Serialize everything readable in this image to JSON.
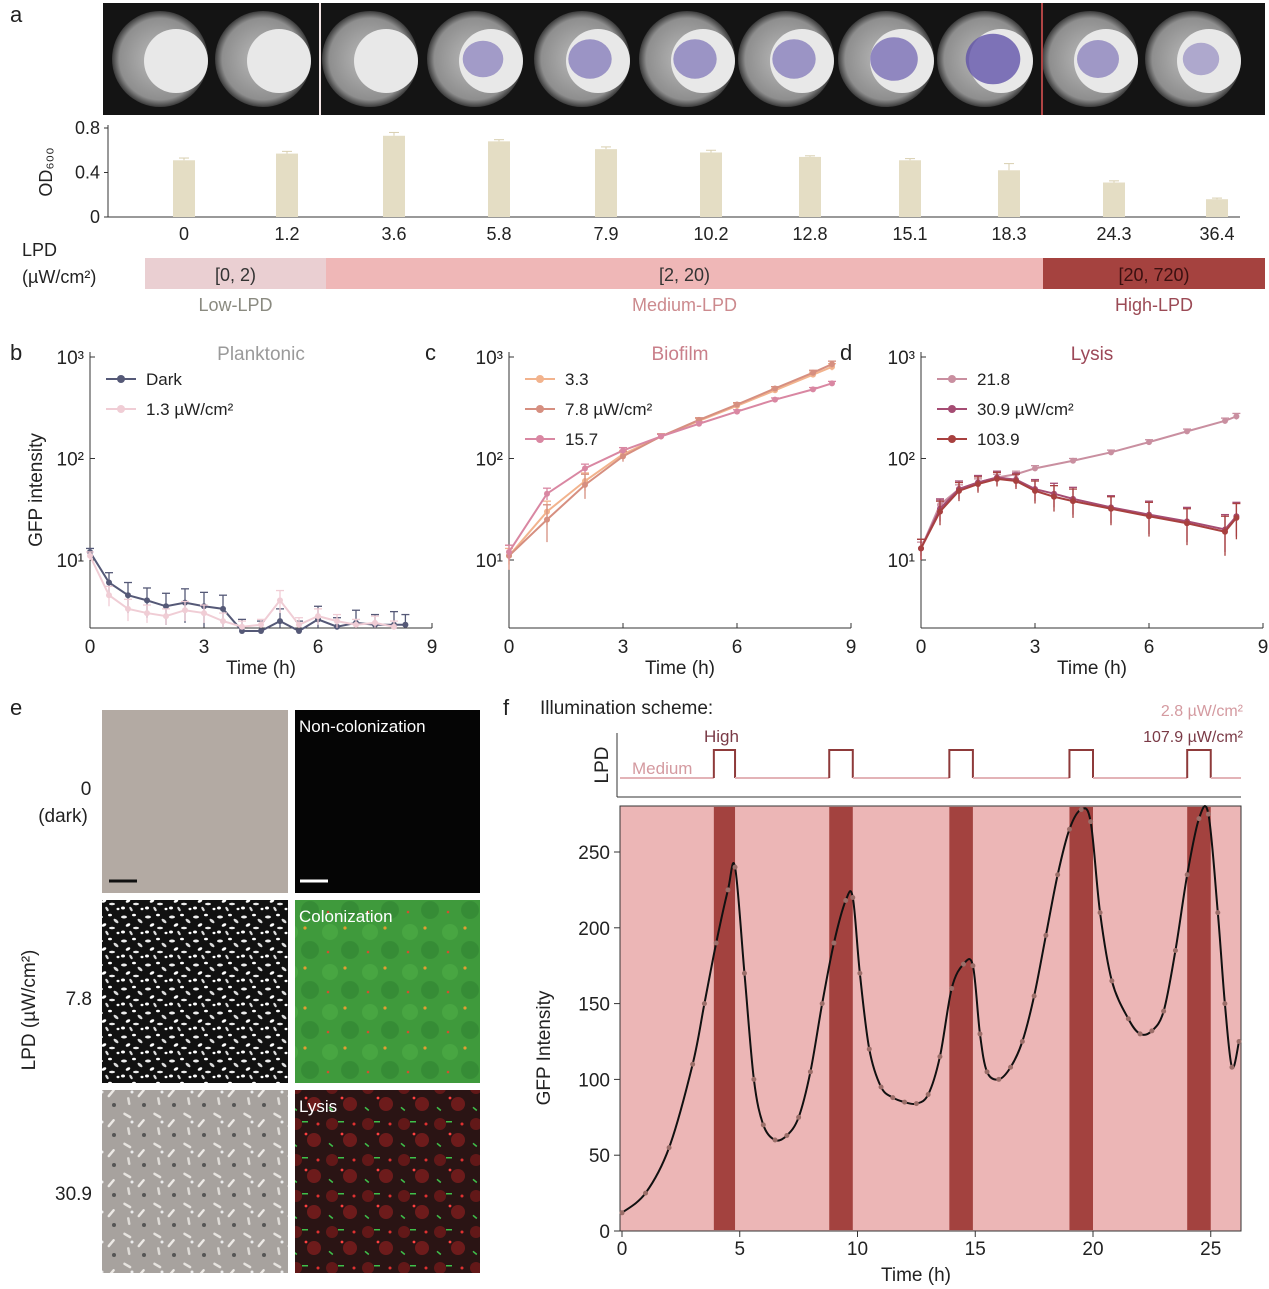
{
  "panel_labels": {
    "a": "a",
    "b": "b",
    "c": "c",
    "d": "d",
    "e": "e",
    "f": "f"
  },
  "panel_a": {
    "well_stain": [
      0,
      0,
      0,
      0.45,
      0.55,
      0.55,
      0.55,
      0.7,
      0.95,
      0.5,
      0.3
    ],
    "lpd_label": "LPD",
    "lpd_unit": "(µW/cm²)",
    "ranges": [
      {
        "range": "[0, 2)",
        "name": "Low-LPD",
        "color": "#eacfd2",
        "text": "#8a8a80"
      },
      {
        "range": "[2, 20)",
        "name": "Medium-LPD",
        "color": "#efb7b7",
        "text": "#cc8a8e"
      },
      {
        "range": "[20, 720)",
        "name": "High-LPD",
        "color": "#a5423f",
        "text": "#9b4a55"
      }
    ]
  },
  "chart_data": [
    {
      "type": "bar",
      "panel": "a",
      "categories": [
        "0",
        "1.2",
        "3.6",
        "5.8",
        "7.9",
        "10.2",
        "12.8",
        "15.1",
        "18.3",
        "24.3",
        "36.4"
      ],
      "values": [
        0.51,
        0.57,
        0.73,
        0.68,
        0.61,
        0.58,
        0.54,
        0.51,
        0.42,
        0.31,
        0.16
      ],
      "errors": [
        0.02,
        0.02,
        0.03,
        0.015,
        0.02,
        0.02,
        0.01,
        0.015,
        0.06,
        0.015,
        0.01
      ],
      "ylabel": "OD₆₀₀",
      "ylim": [
        0,
        0.8
      ],
      "yticks": [
        "0",
        "0.4",
        "0.8"
      ],
      "ytick_values": [
        0,
        0.4,
        0.8
      ],
      "color": "#e4ddc4"
    },
    {
      "type": "line",
      "panel": "b",
      "title": "Planktonic",
      "title_color": "#9a9a9a",
      "xlabel": "Time (h)",
      "ylabel": "GFP intensity",
      "yscale": "log",
      "ylim": [
        2.1,
        1000
      ],
      "xlim": [
        0,
        9
      ],
      "xticks": [
        "0",
        "3",
        "6",
        "9"
      ],
      "yticks": [
        "10³",
        "10²",
        "10¹"
      ],
      "series": [
        {
          "name": "Dark",
          "color": "#555977",
          "x": [
            0,
            0.5,
            1,
            1.5,
            2,
            2.5,
            3,
            3.5,
            4,
            4.5,
            5,
            5.5,
            6,
            6.5,
            7,
            7.5,
            8,
            8.3
          ],
          "y": [
            12,
            6,
            4.5,
            4,
            3.5,
            3.8,
            3.5,
            3.3,
            2,
            2,
            2.5,
            2,
            2.6,
            2.2,
            2.4,
            2.3,
            2.3,
            2.3
          ],
          "err": [
            1,
            1.5,
            1.5,
            1.3,
            1.2,
            1.4,
            1.3,
            1.2,
            0.6,
            0.5,
            0.8,
            0.5,
            0.9,
            0.5,
            0.8,
            0.6,
            0.8,
            0.6
          ]
        },
        {
          "name": "1.3 µW/cm²",
          "color": "#f0cdd5",
          "x": [
            0,
            0.5,
            1,
            1.5,
            2,
            2.5,
            3,
            3.5,
            4,
            4.5,
            5,
            5.5,
            6,
            6.5,
            7,
            7.5,
            8
          ],
          "y": [
            11,
            4.5,
            3.3,
            3,
            2.8,
            3.2,
            3,
            2.5,
            2.2,
            2.3,
            4,
            2.3,
            2.8,
            2.5,
            2.3,
            2.4,
            2.2
          ],
          "err": [
            1,
            1,
            0.8,
            0.6,
            0.5,
            0.7,
            0.6,
            0.5,
            0.3,
            0.3,
            1,
            0.4,
            0.5,
            0.4,
            0.3,
            0.4,
            0.3
          ]
        }
      ]
    },
    {
      "type": "line",
      "panel": "c",
      "title": "Biofilm",
      "title_color": "#c97f8a",
      "xlabel": "Time (h)",
      "yscale": "log",
      "ylim": [
        2.1,
        1000
      ],
      "xlim": [
        0,
        9
      ],
      "xticks": [
        "0",
        "3",
        "6",
        "9"
      ],
      "yticks": [
        "10³",
        "10²",
        "10¹"
      ],
      "series": [
        {
          "name": "3.3",
          "color": "#f2b38d",
          "x": [
            0,
            1,
            2,
            3,
            4,
            5,
            6,
            7,
            8,
            8.5
          ],
          "y": [
            11,
            30,
            60,
            110,
            165,
            235,
            330,
            470,
            670,
            800
          ],
          "err": [
            2,
            8,
            12,
            10,
            10,
            12,
            15,
            20,
            40,
            60
          ]
        },
        {
          "name": "7.8 µW/cm²",
          "color": "#d68f80",
          "x": [
            0,
            1,
            2,
            3,
            4,
            5,
            6,
            7,
            8,
            8.5
          ],
          "y": [
            11,
            25,
            55,
            105,
            165,
            240,
            340,
            490,
            700,
            850
          ],
          "err": [
            3,
            10,
            15,
            12,
            10,
            12,
            15,
            20,
            40,
            60
          ]
        },
        {
          "name": "15.7",
          "color": "#d987a2",
          "x": [
            0,
            1,
            2,
            3,
            4,
            5,
            6,
            7,
            8,
            8.5
          ],
          "y": [
            12,
            45,
            80,
            120,
            165,
            220,
            290,
            380,
            480,
            550
          ],
          "err": [
            2,
            6,
            8,
            8,
            8,
            10,
            12,
            15,
            20,
            25
          ]
        }
      ]
    },
    {
      "type": "line",
      "panel": "d",
      "title": "Lysis",
      "title_color": "#9c4858",
      "xlabel": "Time (h)",
      "yscale": "log",
      "ylim": [
        2.1,
        1000
      ],
      "xlim": [
        0,
        9
      ],
      "xticks": [
        "0",
        "3",
        "6",
        "9"
      ],
      "yticks": [
        "10³",
        "10²",
        "10¹"
      ],
      "series": [
        {
          "name": "21.8",
          "color": "#c98fa0",
          "x": [
            0,
            0.5,
            1,
            1.5,
            2,
            2.5,
            3,
            4,
            5,
            6,
            7,
            8,
            8.3
          ],
          "y": [
            13,
            35,
            50,
            58,
            65,
            70,
            80,
            95,
            115,
            145,
            185,
            235,
            260
          ],
          "err": [
            2,
            4,
            5,
            5,
            5,
            5,
            5,
            5,
            6,
            8,
            10,
            15,
            18
          ]
        },
        {
          "name": "30.9 µW/cm²",
          "color": "#a54c73",
          "x": [
            0,
            0.5,
            1,
            1.5,
            2,
            2.5,
            3,
            3.5,
            4,
            5,
            6,
            7,
            8,
            8.3
          ],
          "y": [
            13,
            32,
            50,
            58,
            65,
            62,
            50,
            45,
            40,
            33,
            28,
            24,
            20,
            27
          ],
          "err": [
            3,
            8,
            10,
            10,
            10,
            10,
            12,
            12,
            12,
            10,
            10,
            9,
            8,
            10
          ]
        },
        {
          "name": "103.9",
          "color": "#a8403f",
          "x": [
            0,
            0.5,
            1,
            1.5,
            2,
            2.5,
            3,
            3.5,
            4,
            5,
            6,
            7,
            8,
            8.3
          ],
          "y": [
            13,
            30,
            48,
            56,
            63,
            60,
            48,
            42,
            38,
            32,
            27,
            23,
            19,
            26
          ],
          "err": [
            3,
            8,
            10,
            10,
            10,
            10,
            12,
            12,
            12,
            10,
            10,
            9,
            8,
            10
          ]
        }
      ]
    },
    {
      "type": "line",
      "panel": "f",
      "xlabel": "Time (h)",
      "ylabel": "GFP Intensity",
      "xlim": [
        0,
        26.3
      ],
      "ylim": [
        0,
        280
      ],
      "xticks": [
        "0",
        "5",
        "10",
        "15",
        "20",
        "25"
      ],
      "xtick_values": [
        0,
        5,
        10,
        15,
        20,
        25
      ],
      "yticks": [
        "0",
        "50",
        "100",
        "150",
        "200",
        "250"
      ],
      "ytick_values": [
        0,
        50,
        100,
        150,
        200,
        250
      ],
      "high_intervals": [
        [
          3.9,
          4.8
        ],
        [
          8.8,
          9.8
        ],
        [
          13.9,
          14.9
        ],
        [
          19,
          20
        ],
        [
          24,
          25
        ]
      ],
      "series": [
        {
          "name": "GFP",
          "color": "#111111",
          "x": [
            0,
            1,
            2,
            3,
            3.5,
            4,
            4.5,
            4.8,
            5.2,
            5.6,
            6,
            6.5,
            7,
            7.5,
            8,
            8.5,
            9,
            9.5,
            9.8,
            10.1,
            10.5,
            11,
            11.5,
            12,
            12.5,
            13,
            13.5,
            14,
            14.5,
            14.9,
            15.2,
            15.5,
            16,
            16.5,
            17,
            17.5,
            18,
            18.5,
            19,
            19.5,
            19.9,
            20.3,
            20.8,
            21.5,
            22,
            22.5,
            23,
            23.5,
            24,
            24.5,
            24.9,
            25.3,
            25.6,
            25.9,
            26.2
          ],
          "y": [
            12,
            25,
            55,
            110,
            150,
            190,
            225,
            240,
            170,
            100,
            70,
            60,
            63,
            75,
            105,
            150,
            190,
            218,
            220,
            170,
            120,
            95,
            88,
            85,
            84,
            90,
            115,
            160,
            176,
            175,
            130,
            105,
            100,
            108,
            125,
            155,
            195,
            235,
            265,
            278,
            270,
            210,
            165,
            140,
            130,
            132,
            145,
            185,
            235,
            272,
            275,
            210,
            150,
            108,
            125
          ]
        }
      ]
    }
  ],
  "panel_e": {
    "ylabel": "LPD (µW/cm²)",
    "rows": [
      {
        "lpd": "0",
        "sub": "(dark)",
        "state": "Non-colonization"
      },
      {
        "lpd": "7.8",
        "sub": "",
        "state": "Colonization"
      },
      {
        "lpd": "30.9",
        "sub": "",
        "state": "Lysis"
      }
    ]
  },
  "panel_f": {
    "title": "Illumination scheme:",
    "lpd_axis": "LPD",
    "high_label": "High",
    "medium_label": "Medium",
    "medium_value": "2.8 µW/cm²",
    "high_value": "107.9 µW/cm²",
    "medium_color": "#e3b3b7",
    "high_color": "#8e3a3a",
    "bg_color": "#ecb6b6",
    "pulse_color": "#a3423f"
  }
}
